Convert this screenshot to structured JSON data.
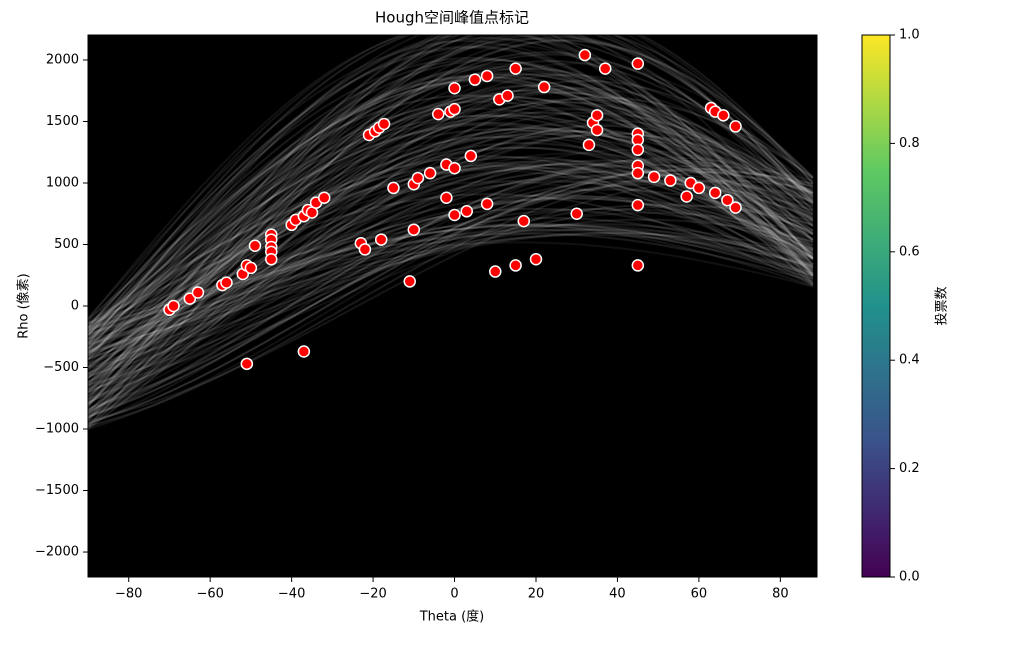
{
  "chart_data": {
    "type": "scatter",
    "title": "Hough空间峰值点标记",
    "xlabel": "Theta (度)",
    "ylabel": "Rho (像素)",
    "x": [
      -70,
      -69,
      -65,
      -63,
      -57,
      -56,
      -52,
      -51,
      -50,
      -49,
      -51,
      -45,
      -45,
      -45,
      -45,
      -45,
      -40,
      -39,
      -37,
      -36,
      -35,
      -34,
      -32,
      -37,
      -23,
      -22,
      -18,
      -21,
      -19.5,
      -18.5,
      -17.3,
      -15,
      -11,
      -10,
      -10,
      -9,
      -6,
      -4,
      -2,
      -2,
      -1,
      0,
      0,
      0,
      0,
      3,
      4,
      5,
      8,
      8,
      11,
      13,
      10,
      15,
      15,
      17,
      20,
      22,
      30,
      32,
      33,
      34,
      35,
      35,
      37,
      45,
      45,
      45,
      45,
      45,
      45,
      45,
      45,
      49,
      53,
      57,
      58,
      60,
      63,
      64,
      64,
      66,
      67,
      69,
      69
    ],
    "values": [
      -30,
      0,
      60,
      110,
      170,
      190,
      260,
      330,
      310,
      490,
      -470,
      580,
      540,
      480,
      440,
      380,
      660,
      700,
      730,
      780,
      760,
      840,
      880,
      -370,
      510,
      460,
      540,
      1390,
      1420,
      1450,
      1480,
      960,
      200,
      620,
      990,
      1040,
      1080,
      1560,
      880,
      1150,
      1580,
      1600,
      1770,
      1120,
      740,
      770,
      1220,
      1840,
      1870,
      830,
      1680,
      1710,
      280,
      1930,
      330,
      690,
      380,
      1780,
      750,
      2040,
      1310,
      1490,
      1550,
      1430,
      1930,
      1970,
      1400,
      1350,
      1270,
      1140,
      1080,
      820,
      330,
      1050,
      1020,
      890,
      1000,
      960,
      1610,
      1580,
      920,
      1550,
      860,
      1460,
      800
    ],
    "color": "#ff0000",
    "edgecolor": "#ffffff",
    "xlim": [
      -90,
      89
    ],
    "ylim": [
      -2203,
      2203
    ],
    "xticks": [
      {
        "value": -80,
        "label": "−80"
      },
      {
        "value": -60,
        "label": "−60"
      },
      {
        "value": -40,
        "label": "−40"
      },
      {
        "value": -20,
        "label": "−20"
      },
      0,
      20,
      40,
      60,
      80
    ],
    "yticks": [
      {
        "value": -2000,
        "label": "−2000"
      },
      {
        "value": -1500,
        "label": "−1500"
      },
      {
        "value": -1000,
        "label": "−1000"
      },
      {
        "value": -500,
        "label": "−500"
      },
      0,
      500,
      1000,
      1500,
      2000
    ],
    "colorbar_label": "投票数",
    "colormap": "viridis",
    "clim": [
      0,
      1
    ],
    "cticks": [
      {
        "value": 0,
        "label": "0.0"
      },
      0.2,
      0.4,
      0.6,
      0.8,
      {
        "value": 1,
        "label": "1.0"
      }
    ]
  }
}
